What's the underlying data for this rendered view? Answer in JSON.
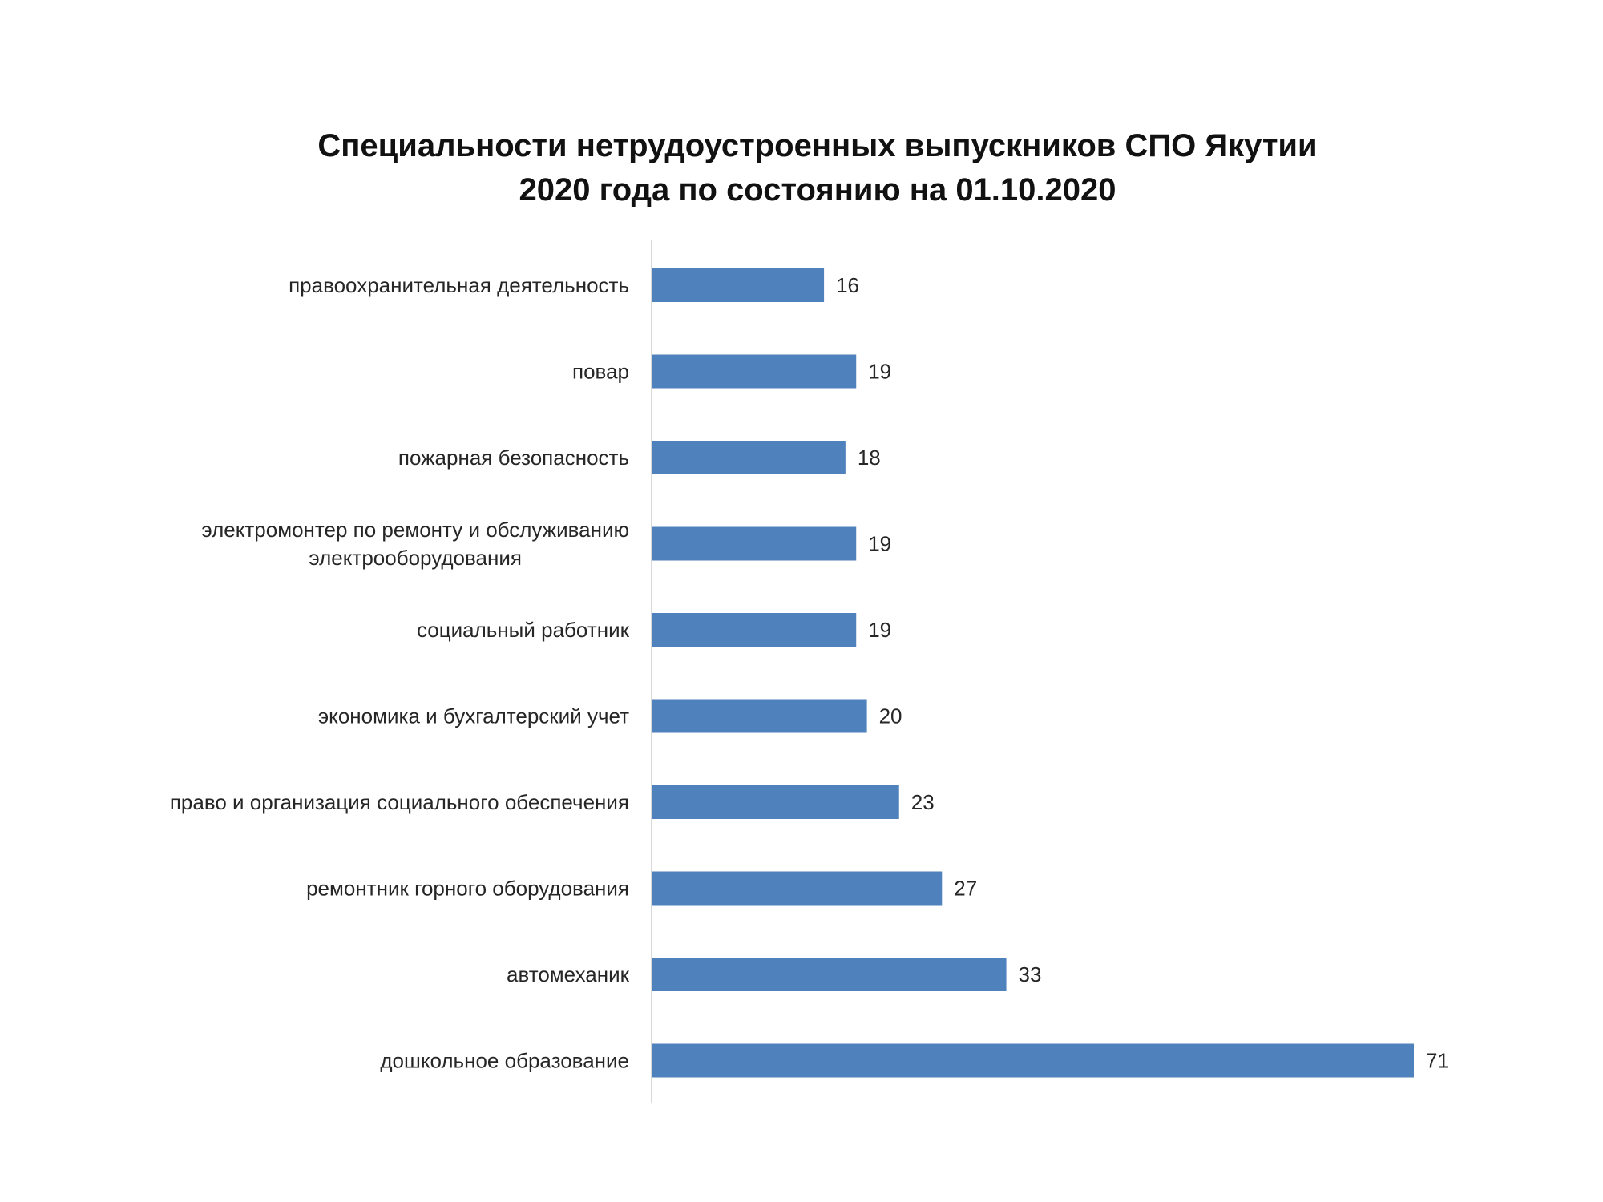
{
  "chart_data": {
    "type": "bar",
    "orientation": "horizontal",
    "title": "Специальности нетрудоустроенных выпускников СПО Якутии 2020 года по состоянию на 01.10.2020",
    "title_lines": [
      "Специальности нетрудоустроенных выпускников СПО Якутии",
      "2020 года по состоянию на 01.10.2020"
    ],
    "categories": [
      [
        "правоохранительная деятельность"
      ],
      [
        "повар"
      ],
      [
        "пожарная безопасность"
      ],
      [
        "электромонтер по ремонту и обслуживанию",
        "электрооборудования"
      ],
      [
        "социальный работник"
      ],
      [
        "экономика и бухгалтерский учет"
      ],
      [
        "право и организация социального обеспечения"
      ],
      [
        "ремонтник горного оборудования"
      ],
      [
        "автомеханик"
      ],
      [
        "дошкольное образование"
      ]
    ],
    "values": [
      16,
      19,
      18,
      19,
      19,
      20,
      23,
      27,
      33,
      71
    ],
    "data_labels": [
      "16",
      "19",
      "18",
      "19",
      "19",
      "20",
      "23",
      "27",
      "33",
      "71"
    ],
    "xlim": [
      0,
      71
    ],
    "xlabel": "",
    "ylabel": "",
    "grid": false,
    "legend": "none",
    "bar_color": "#4F81BD",
    "axis_color": "#D9D9D9"
  }
}
